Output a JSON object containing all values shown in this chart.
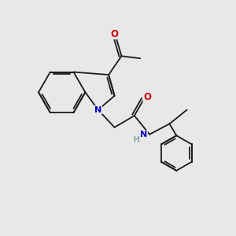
{
  "background_color": "#e8e8e8",
  "bond_color": "#1a1a1a",
  "atom_colors": {
    "N": "#0000cc",
    "O": "#cc0000",
    "H": "#4a7a7a",
    "C": "#1a1a1a"
  },
  "figsize": [
    3.0,
    3.0
  ],
  "dpi": 100,
  "lw": 1.3
}
